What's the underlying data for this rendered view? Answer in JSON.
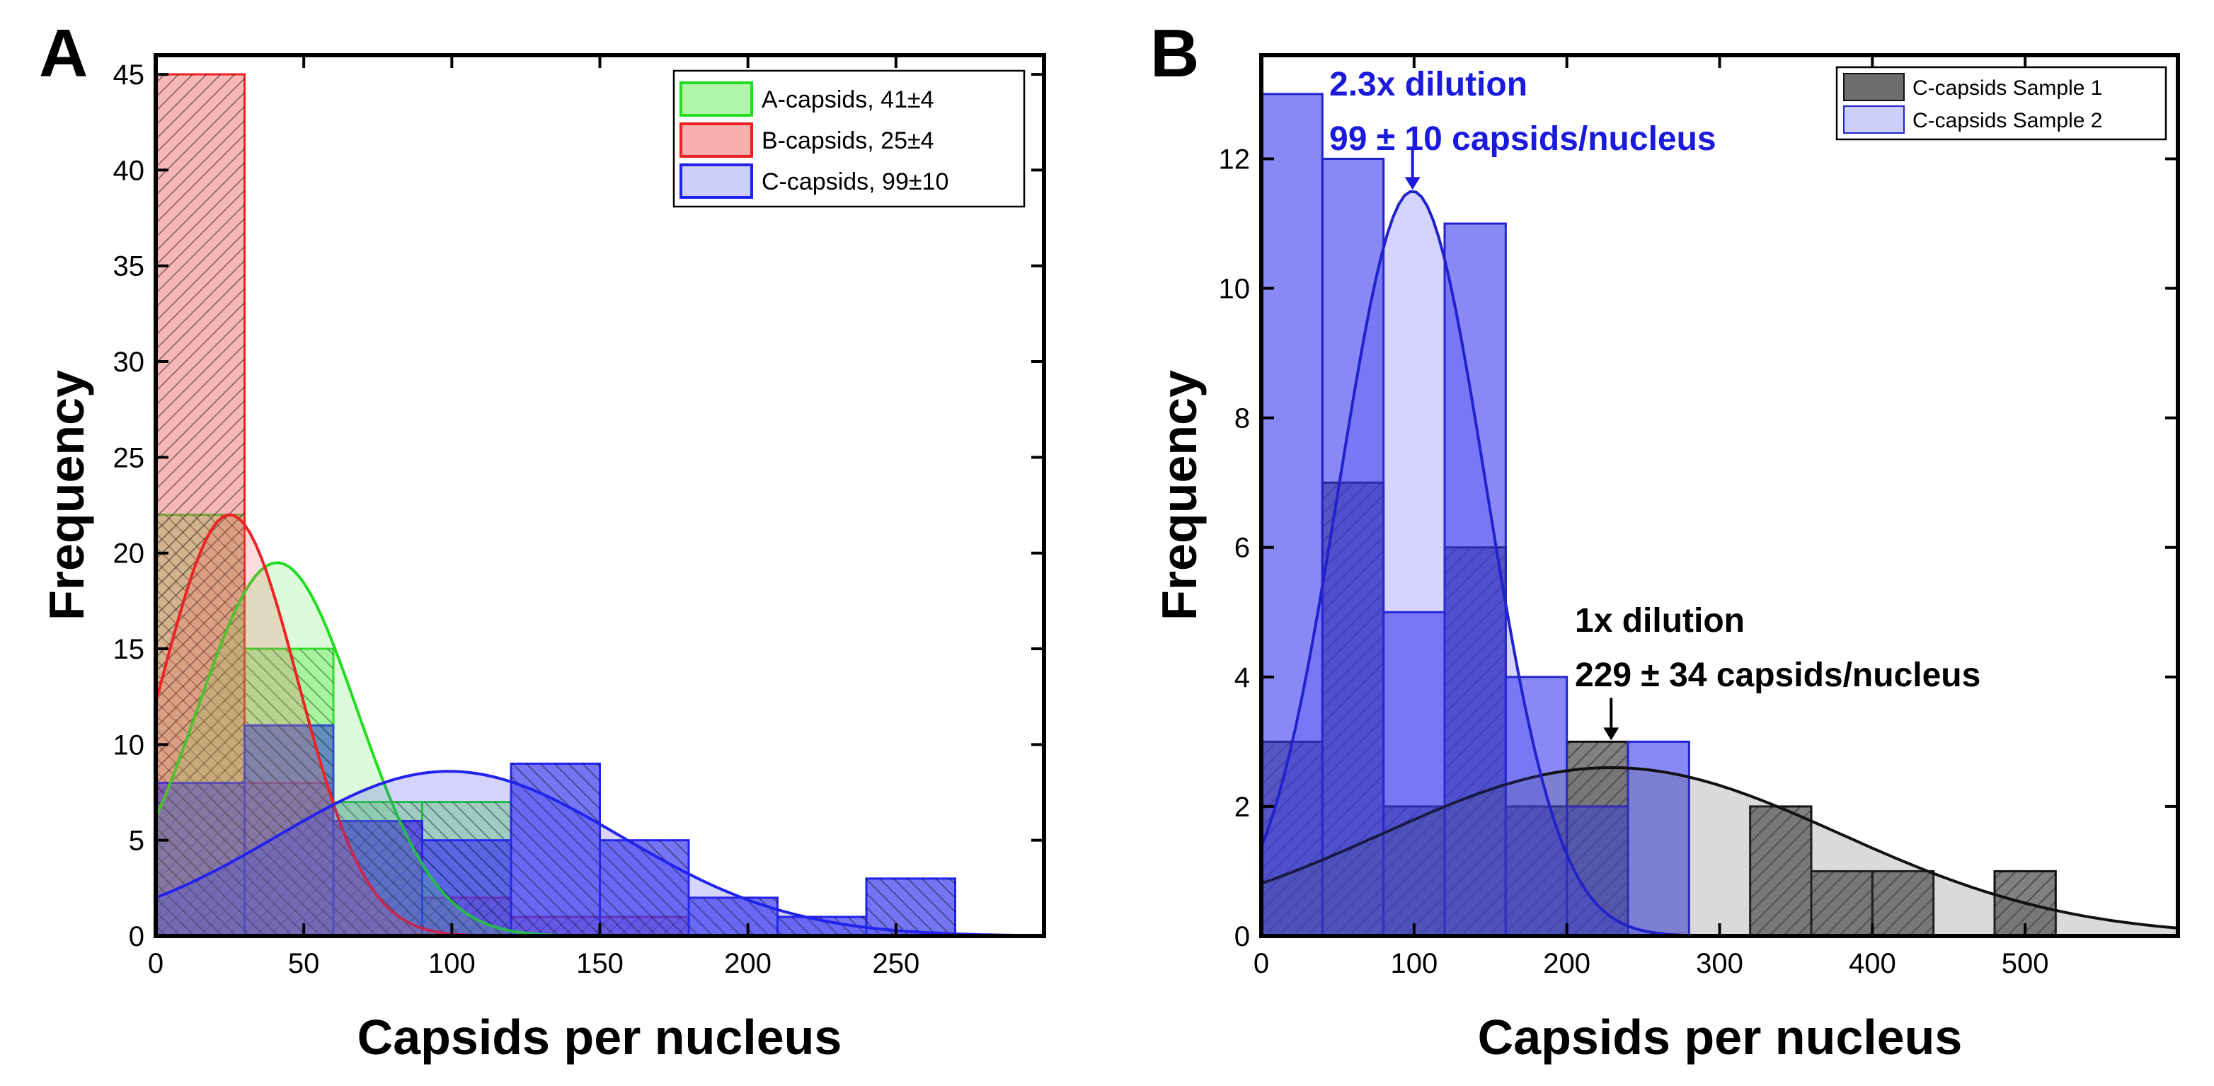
{
  "chart_data": [
    {
      "panel": "A",
      "type": "histogram",
      "xlabel": "Capsids per nucleus",
      "ylabel": "Frequency",
      "xlim": [
        0,
        300
      ],
      "ylim": [
        0,
        46
      ],
      "xticks": [
        0,
        50,
        100,
        150,
        200,
        250
      ],
      "yticks": [
        0,
        5,
        10,
        15,
        20,
        25,
        30,
        35,
        40,
        45
      ],
      "bin_width": 30,
      "series": [
        {
          "name": "A-capsids, 41±4",
          "color": "#22dd22",
          "fill": "#66ee55",
          "bins": [
            0,
            30,
            60,
            90
          ],
          "values": [
            22,
            15,
            7,
            7
          ],
          "fit": {
            "mean": 41,
            "sd": 27,
            "peak": 19.5
          }
        },
        {
          "name": "B-capsids, 25±4",
          "color": "#ee2222",
          "fill": "#f06060",
          "bins": [
            0,
            30,
            60,
            90,
            120,
            150
          ],
          "values": [
            45,
            8,
            6,
            2,
            1,
            1
          ],
          "fit": {
            "mean": 25,
            "sd": 23,
            "peak": 22
          }
        },
        {
          "name": "C-capsids, 99±10",
          "color": "#2222ee",
          "fill": "#3b3bf0",
          "bins": [
            0,
            30,
            60,
            90,
            120,
            150,
            180,
            210,
            240
          ],
          "values": [
            8,
            11,
            6,
            5,
            9,
            5,
            2,
            1,
            3
          ],
          "fit": {
            "mean": 99,
            "sd": 58,
            "peak": 8.6
          }
        }
      ]
    },
    {
      "panel": "B",
      "type": "histogram",
      "xlabel": "Capsids per nucleus",
      "ylabel": "Frequency",
      "xlim": [
        0,
        600
      ],
      "ylim": [
        0,
        13.6
      ],
      "xticks": [
        0,
        100,
        200,
        300,
        400,
        500
      ],
      "yticks": [
        0,
        2,
        4,
        6,
        8,
        10,
        12
      ],
      "bin_width": 40,
      "series": [
        {
          "name": "C-capsids Sample 1",
          "color": "#111111",
          "fill": "#555555",
          "bins": [
            0,
            40,
            80,
            120,
            160,
            200,
            240,
            280,
            320,
            360,
            400,
            440,
            480
          ],
          "values": [
            3,
            7,
            2,
            6,
            2,
            3,
            0,
            0,
            2,
            1,
            1,
            0,
            1
          ],
          "fit": {
            "mean": 229,
            "sd": 150,
            "peak": 2.6
          }
        },
        {
          "name": "C-capsids Sample 2",
          "color": "#2222cc",
          "fill": "#3b3bf0",
          "bins": [
            0,
            40,
            80,
            120,
            160,
            200,
            240
          ],
          "values": [
            13,
            12,
            5,
            11,
            4,
            2,
            3
          ],
          "fit": {
            "mean": 99,
            "sd": 48,
            "peak": 11.5
          }
        }
      ],
      "annotations": [
        {
          "line1": "2.3x dilution",
          "line2": "99 ± 10 capsids/nucleus",
          "color": "#1a1adc",
          "arrow_x": 99,
          "arrow_y": 11.5
        },
        {
          "line1": "1x dilution",
          "line2": "229 ± 34 capsids/nucleus",
          "color": "#000000",
          "arrow_x": 229,
          "arrow_y": 3.0
        }
      ]
    }
  ]
}
